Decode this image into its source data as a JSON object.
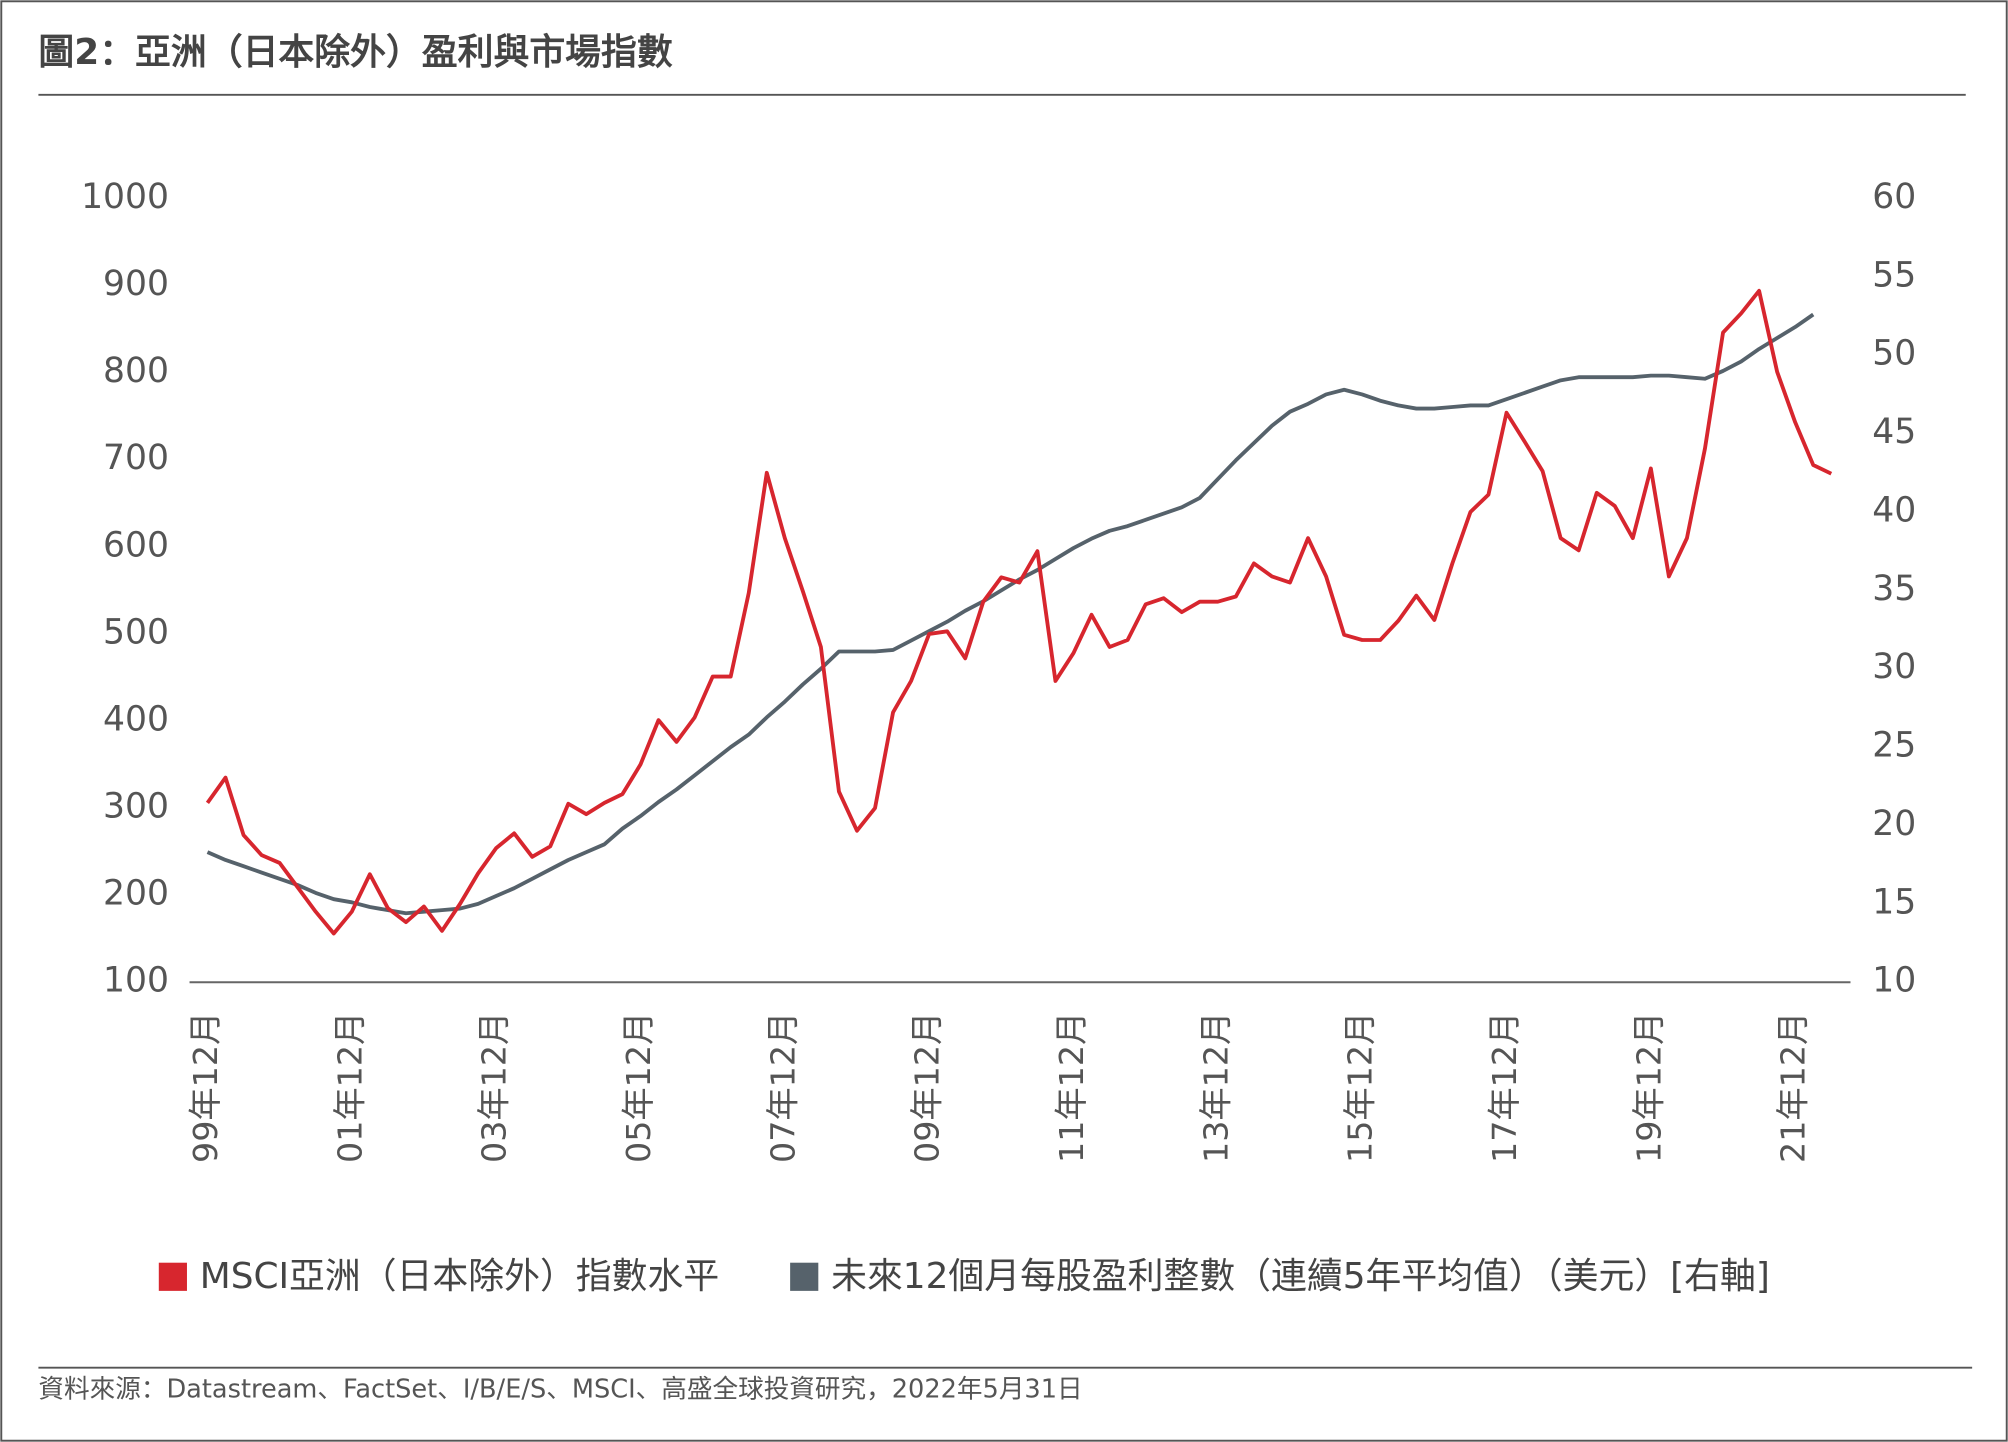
{
  "chart_data": {
    "type": "line",
    "title": "圖2：亞洲（日本除外）盈利與市場指數",
    "source": "資料來源：Datastream、FactSet、I/B/E/S、MSCI、高盛全球投資研究，2022年5月31日",
    "categories": [
      "99年12月",
      null,
      null,
      null,
      null,
      null,
      null,
      null,
      "01年12月",
      null,
      null,
      null,
      null,
      null,
      null,
      null,
      "03年12月",
      null,
      null,
      null,
      null,
      null,
      null,
      null,
      "05年12月",
      null,
      null,
      null,
      null,
      null,
      null,
      null,
      "07年12月",
      null,
      null,
      null,
      null,
      null,
      null,
      null,
      "09年12月",
      null,
      null,
      null,
      null,
      null,
      null,
      null,
      "11年12月",
      null,
      null,
      null,
      null,
      null,
      null,
      null,
      "13年12月",
      null,
      null,
      null,
      null,
      null,
      null,
      null,
      "15年12月",
      null,
      null,
      null,
      null,
      null,
      null,
      null,
      "17年12月",
      null,
      null,
      null,
      null,
      null,
      null,
      null,
      "19年12月",
      null,
      null,
      null,
      null,
      null,
      null,
      null,
      "21年12月",
      null,
      null
    ],
    "series": [
      {
        "name": "MSCI亞洲（日本除外）指數水平",
        "color": "#d7262e",
        "axis": "y",
        "values": [
          306,
          335,
          269,
          246,
          237,
          209,
          181,
          156,
          181,
          224,
          185,
          169,
          187,
          159,
          190,
          225,
          254,
          271,
          244,
          256,
          305,
          293,
          306,
          316,
          350,
          401,
          376,
          404,
          451,
          451,
          547,
          685,
          610,
          549,
          485,
          319,
          274,
          300,
          410,
          446,
          500,
          503,
          472,
          537,
          565,
          559,
          595,
          446,
          478,
          522,
          485,
          493,
          534,
          541,
          525,
          537,
          537,
          543,
          581,
          566,
          559,
          610,
          566,
          499,
          493,
          493,
          515,
          544,
          516,
          581,
          640,
          660,
          754,
          721,
          687,
          610,
          596,
          662,
          647,
          610,
          690,
          566,
          610,
          713,
          846,
          868,
          894,
          801,
          743,
          694,
          684
        ]
      },
      {
        "name": "未來12個月每股盈利整數（連續5年平均值）（美元）[右軸]",
        "color": "#56626b",
        "axis": "y2",
        "values": [
          18.3,
          17.8,
          17.4,
          17.0,
          16.6,
          16.2,
          15.7,
          15.3,
          15.1,
          14.8,
          14.6,
          14.4,
          14.5,
          14.6,
          14.7,
          15.0,
          15.5,
          16.0,
          16.6,
          17.2,
          17.8,
          18.3,
          18.8,
          19.8,
          20.6,
          21.5,
          22.3,
          23.2,
          24.1,
          25.0,
          25.8,
          26.9,
          27.9,
          29.0,
          30.0,
          31.1,
          31.1,
          31.1,
          31.2,
          31.8,
          32.4,
          33.0,
          33.7,
          34.3,
          35.0,
          35.7,
          36.3,
          37.0,
          37.7,
          38.3,
          38.8,
          39.1,
          39.5,
          39.9,
          40.3,
          40.9,
          42.1,
          43.3,
          44.4,
          45.5,
          46.4,
          46.9,
          47.5,
          47.8,
          47.5,
          47.1,
          46.8,
          46.6,
          46.6,
          46.7,
          46.8,
          46.8,
          47.2,
          47.6,
          48.0,
          48.4,
          48.6,
          48.6,
          48.6,
          48.6,
          48.7,
          48.7,
          48.6,
          48.5,
          49.0,
          49.6,
          50.4,
          51.1,
          51.8,
          52.6,
          null
        ]
      }
    ],
    "ylim": [
      100,
      1000
    ],
    "yticks": [
      100,
      200,
      300,
      400,
      500,
      600,
      700,
      800,
      900,
      1000
    ],
    "y2lim": [
      10,
      60
    ],
    "y2ticks": [
      10,
      15,
      20,
      25,
      30,
      35,
      40,
      45,
      50,
      55,
      60
    ],
    "grid": false,
    "legend": "bottom"
  }
}
